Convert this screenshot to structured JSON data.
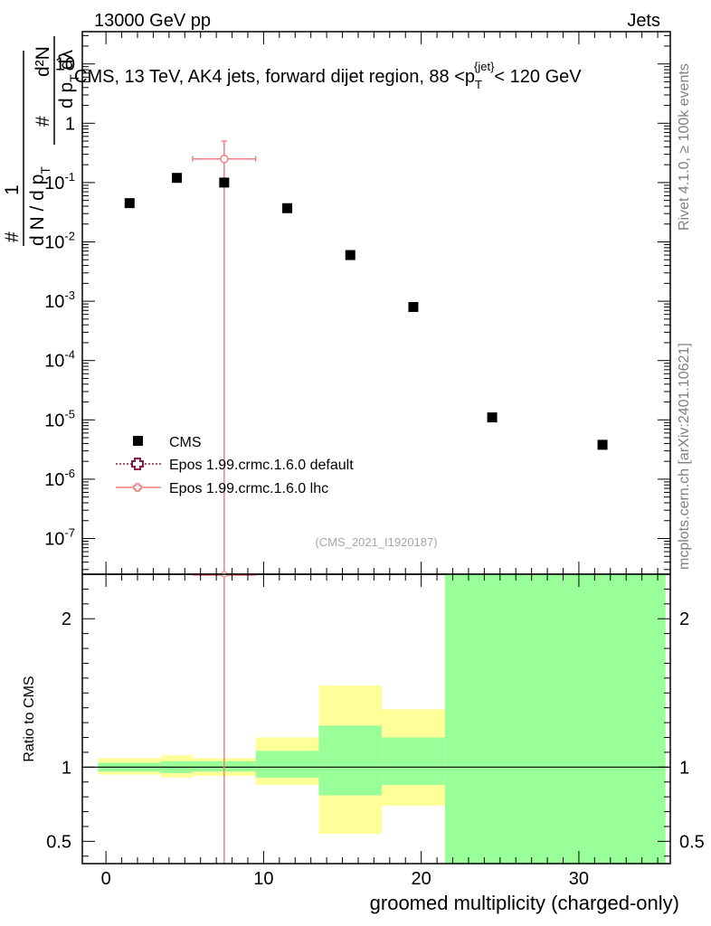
{
  "header": {
    "left": "13000 GeV pp",
    "right": "Jets"
  },
  "side_labels": {
    "rivet": "Rivet 4.1.0, ≥ 100k events",
    "mcplots": "mcplots.cern.ch [arXiv:2401.10621]"
  },
  "colors": {
    "cms": "#000000",
    "epos_default": "#8b1a4a",
    "epos_lhc": "#f08080",
    "band_inner": "#99ff99",
    "band_outer": "#ffff99"
  },
  "chart_data": [
    {
      "type": "scatter",
      "title": "CMS, 13 TeV, AK4 jets, forward dijet region, 88 <p_T^{jet}< 120 GeV",
      "title_parts": {
        "prefix": "CMS, 13 TeV, AK4 jets, forward dijet region, 88 <p",
        "sub": "T",
        "sup": "{jet}",
        "suffix": "< 120 GeV"
      },
      "ylabel_parts": {
        "a": "1",
        "b": "#",
        "c": "d N / d p",
        "d": "T",
        "e": "#",
        "f": "d²N",
        "g": "d p",
        "h": "T",
        "i": "dλ"
      },
      "yscale": "log",
      "xlim": [
        -1.5,
        35.8
      ],
      "ylim": [
        2.5e-08,
        35
      ],
      "yticks": [
        {
          "v": 1e-07,
          "base": "10",
          "exp": "-7"
        },
        {
          "v": 1e-06,
          "base": "10",
          "exp": "-6"
        },
        {
          "v": 1e-05,
          "base": "10",
          "exp": "-5"
        },
        {
          "v": 0.0001,
          "base": "10",
          "exp": "-4"
        },
        {
          "v": 0.001,
          "base": "10",
          "exp": "-3"
        },
        {
          "v": 0.01,
          "base": "10",
          "exp": "-2"
        },
        {
          "v": 0.1,
          "base": "10",
          "exp": "-1"
        },
        {
          "v": 1,
          "base": "1",
          "exp": ""
        },
        {
          "v": 10,
          "base": "10",
          "exp": ""
        }
      ],
      "watermark": "(CMS_2021_I1920187)",
      "legend_position": "bottom-left",
      "series": [
        {
          "name": "CMS",
          "x": [
            1.5,
            4.5,
            7.5,
            11.5,
            15.5,
            19.5,
            24.5,
            31.5
          ],
          "y": [
            0.045,
            0.12,
            0.1,
            0.037,
            0.006,
            0.0008,
            1.1e-05,
            3.8e-06
          ]
        },
        {
          "name": "Epos 1.99.crmc.1.6.0 default",
          "x": [],
          "y": []
        },
        {
          "name": "Epos 1.99.crmc.1.6.0 lhc",
          "x": [
            7.5
          ],
          "xerr": [
            2.0
          ],
          "y": [
            0.25
          ],
          "ylow": [
            1e-09
          ],
          "yhigh": [
            0.5
          ]
        }
      ]
    },
    {
      "type": "area",
      "ylabel": "Ratio to CMS",
      "xlabel": "groomed multiplicity (charged-only)",
      "xlim": [
        -1.5,
        35.8
      ],
      "ylim": [
        0.35,
        2.3
      ],
      "xticks": [
        0,
        10,
        20,
        30
      ],
      "yticks": [
        0.5,
        1,
        2
      ],
      "bands": [
        {
          "x0": -0.5,
          "x1": 3.5,
          "inner": [
            0.97,
            1.03
          ],
          "outer": [
            0.95,
            1.06
          ]
        },
        {
          "x0": 3.5,
          "x1": 5.5,
          "inner": [
            0.96,
            1.04
          ],
          "outer": [
            0.93,
            1.08
          ]
        },
        {
          "x0": 5.5,
          "x1": 9.5,
          "inner": [
            0.97,
            1.04
          ],
          "outer": [
            0.94,
            1.06
          ]
        },
        {
          "x0": 9.5,
          "x1": 13.5,
          "inner": [
            0.93,
            1.11
          ],
          "outer": [
            0.88,
            1.2
          ]
        },
        {
          "x0": 13.5,
          "x1": 17.5,
          "inner": [
            0.81,
            1.28
          ],
          "outer": [
            0.55,
            1.55
          ]
        },
        {
          "x0": 17.5,
          "x1": 21.5,
          "inner": [
            0.88,
            1.2
          ],
          "outer": [
            0.74,
            1.39
          ]
        },
        {
          "x0": 21.5,
          "x1": 35.5,
          "inner": [
            0.35,
            2.3
          ],
          "outer": [
            0.35,
            2.3
          ]
        }
      ],
      "lhc_ratio": {
        "x": 7.5,
        "xerr": 2.0
      }
    }
  ]
}
